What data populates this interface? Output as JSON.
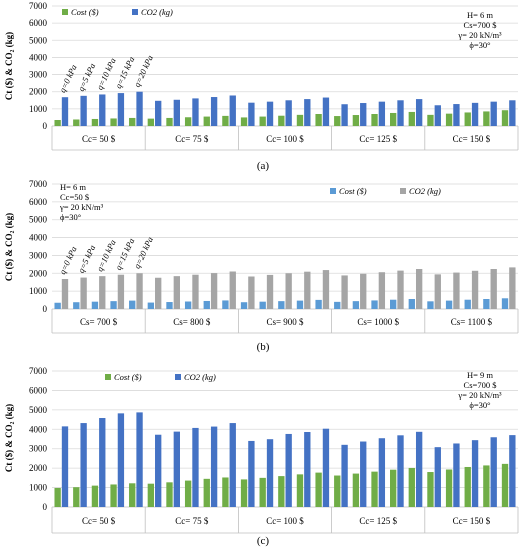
{
  "colors": {
    "cost_green": "#70AD47",
    "co2_blue": "#4472C4",
    "cost_blue": "#5B9BD5",
    "co2_gray": "#A5A5A5",
    "grid": "#D9D9D9",
    "text": "#000000"
  },
  "chart_data": [
    {
      "type": "bar",
      "panel_label": "(a)",
      "ylabel": "Ct ($) & CO₂ (kg)",
      "ylim": [
        0,
        7000
      ],
      "yticks": [
        0,
        1000,
        2000,
        3000,
        4000,
        5000,
        6000,
        7000
      ],
      "grid": true,
      "legend_position": "top-center",
      "group_labels": [
        "Cc= 50 $",
        "Cc= 75 $",
        "Cc= 100 $",
        "Cc= 125 $",
        "Cc= 150 $"
      ],
      "q_labels": [
        "q=0 kPa",
        "q=5 kPa",
        "q=10 kPa",
        "q=15 kPa",
        "q=20 kPa"
      ],
      "params": [
        "H= 6 m",
        "Cs=700 $",
        "γ= 20 kN/m³",
        "ϕ=30°"
      ],
      "params_position": "top-right",
      "series": [
        {
          "name": "Cost ($)",
          "color": "#70AD47",
          "values": [
            350,
            380,
            410,
            440,
            470,
            430,
            470,
            510,
            550,
            590,
            500,
            550,
            600,
            650,
            700,
            580,
            640,
            700,
            760,
            820,
            650,
            720,
            790,
            850,
            920
          ]
        },
        {
          "name": "CO2 (kg)",
          "color": "#4472C4",
          "values": [
            1680,
            1760,
            1840,
            1920,
            2000,
            1470,
            1530,
            1610,
            1690,
            1780,
            1360,
            1420,
            1500,
            1570,
            1660,
            1270,
            1340,
            1420,
            1500,
            1570,
            1210,
            1280,
            1350,
            1420,
            1500
          ]
        }
      ]
    },
    {
      "type": "bar",
      "panel_label": "(b)",
      "ylabel": "Ct ($) & CO₂ (kg)",
      "ylim": [
        0,
        7000
      ],
      "yticks": [
        0,
        1000,
        2000,
        3000,
        4000,
        5000,
        6000,
        7000
      ],
      "grid": true,
      "legend_position": "top-right",
      "group_labels": [
        "Cs= 700 $",
        "Cs= 800 $",
        "Cs= 900 $",
        "Cs= 1000 $",
        "Cs= 1100 $"
      ],
      "q_labels": [
        "q=0 kPa",
        "q=5 kPa",
        "q=10 kPa",
        "q=15 kPa",
        "q=20 kPa"
      ],
      "params": [
        "H= 6 m",
        "Cc=50 $",
        "γ= 20 kN/m³",
        "ϕ=30°"
      ],
      "params_position": "top-left",
      "series": [
        {
          "name": "Cost ($)",
          "color": "#5B9BD5",
          "values": [
            350,
            380,
            410,
            440,
            470,
            360,
            390,
            420,
            450,
            480,
            380,
            410,
            440,
            470,
            510,
            400,
            440,
            480,
            520,
            560,
            430,
            470,
            520,
            560,
            600
          ]
        },
        {
          "name": "CO2 (kg)",
          "color": "#A5A5A5",
          "values": [
            1680,
            1760,
            1840,
            1920,
            2000,
            1750,
            1840,
            1920,
            2010,
            2100,
            1820,
            1910,
            2000,
            2090,
            2180,
            1880,
            1970,
            2060,
            2150,
            2240,
            1940,
            2040,
            2140,
            2240,
            2330
          ]
        }
      ]
    },
    {
      "type": "bar",
      "panel_label": "(c)",
      "ylabel": "Ct ($) & CO₂ (kg)",
      "ylim": [
        0,
        7000
      ],
      "yticks": [
        0,
        1000,
        2000,
        3000,
        4000,
        5000,
        6000,
        7000
      ],
      "grid": true,
      "legend_position": "top-center",
      "group_labels": [
        "Cc= 50 $",
        "Cc= 75 $",
        "Cc= 100 $",
        "Cc= 125 $",
        "Cc= 150 $"
      ],
      "params": [
        "H= 9 m",
        "Cs=700 $",
        "γ= 20 kN/m³",
        "ϕ=30°"
      ],
      "params_position": "top-right",
      "series": [
        {
          "name": "Cost ($)",
          "color": "#70AD47",
          "values": [
            980,
            1020,
            1100,
            1160,
            1220,
            1200,
            1270,
            1360,
            1450,
            1520,
            1420,
            1500,
            1590,
            1680,
            1770,
            1620,
            1720,
            1820,
            1920,
            2010,
            1800,
            1930,
            2060,
            2140,
            2220
          ]
        },
        {
          "name": "CO2 (kg)",
          "color": "#4472C4",
          "values": [
            4150,
            4320,
            4580,
            4820,
            4870,
            3720,
            3880,
            4070,
            4140,
            4320,
            3400,
            3490,
            3760,
            3860,
            4030,
            3200,
            3370,
            3540,
            3690,
            3870,
            3080,
            3270,
            3440,
            3590,
            3700
          ]
        }
      ]
    }
  ]
}
